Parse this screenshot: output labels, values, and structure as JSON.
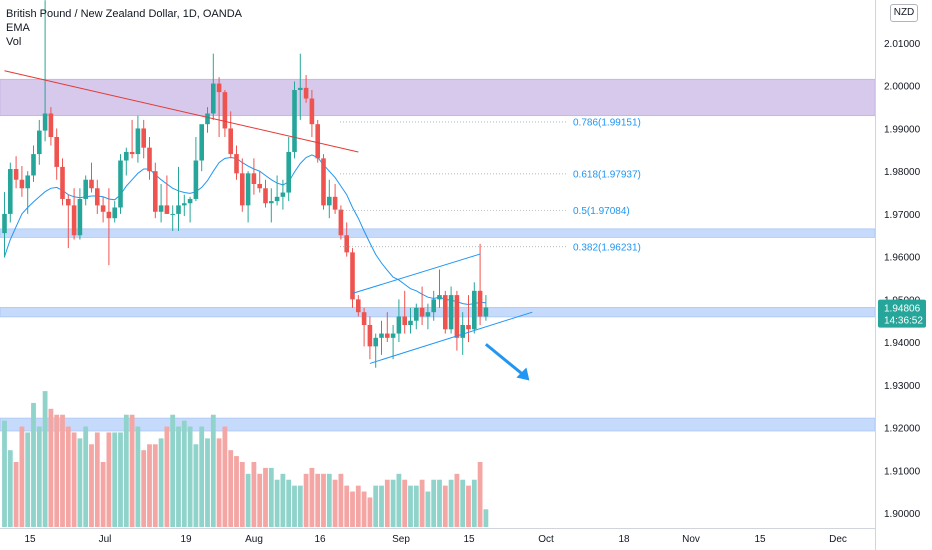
{
  "header": {
    "symbol": "British Pound / New Zealand Dollar, 1D, OANDA",
    "indicator_1": "EMA",
    "indicator_2": "Vol"
  },
  "currency_badge": "NZD",
  "price_label": {
    "price": "1.94806",
    "countdown": "14:36:52"
  },
  "colors": {
    "up": "#26a69a",
    "down": "#ef5350",
    "vol_up": "#8fd3cb",
    "vol_down": "#f4a6a4",
    "zone_purple": "#d6c9ec",
    "zone_blue": "#c6dafc",
    "ema": "#2196f3",
    "trendline": "#e53935",
    "channel": "#2196f3",
    "fib": "#2196f3",
    "price_tag": "#26a69a"
  },
  "chart_data": {
    "type": "candlestick",
    "y_axis": {
      "min": 1.9,
      "max": 2.01,
      "ticks": [
        "2.01000",
        "2.00000",
        "1.99000",
        "1.98000",
        "1.97000",
        "1.96000",
        "1.95000",
        "1.94000",
        "1.93000",
        "1.92000",
        "1.91000",
        "1.90000"
      ]
    },
    "x_axis": {
      "tick_labels": [
        "15",
        "Jul",
        "19",
        "Aug",
        "16",
        "Sep",
        "15",
        "Oct",
        "18",
        "Nov",
        "15",
        "Dec"
      ]
    },
    "candles": [
      [
        1.9655,
        1.9751,
        1.9598,
        1.97
      ],
      [
        1.97,
        1.982,
        1.968,
        1.9805
      ],
      [
        1.9805,
        1.9835,
        1.976,
        1.978
      ],
      [
        1.978,
        1.9812,
        1.974,
        1.976
      ],
      [
        1.976,
        1.98,
        1.97,
        1.979
      ],
      [
        1.979,
        1.986,
        1.9775,
        1.984
      ],
      [
        1.984,
        1.992,
        1.9815,
        1.9895
      ],
      [
        1.9895,
        2.02,
        1.987,
        1.9935
      ],
      [
        1.9935,
        1.995,
        1.986,
        1.988
      ],
      [
        1.988,
        1.99,
        1.978,
        1.981
      ],
      [
        1.981,
        1.983,
        1.972,
        1.9735
      ],
      [
        1.9735,
        1.9745,
        1.962,
        1.972
      ],
      [
        1.972,
        1.976,
        1.964,
        1.965
      ],
      [
        1.965,
        1.976,
        1.964,
        1.9735
      ],
      [
        1.9735,
        1.979,
        1.972,
        1.978
      ],
      [
        1.978,
        1.982,
        1.975,
        1.976
      ],
      [
        1.976,
        1.978,
        1.97,
        1.972
      ],
      [
        1.972,
        1.974,
        1.968,
        1.9705
      ],
      [
        1.9705,
        1.976,
        1.958,
        1.969
      ],
      [
        1.969,
        1.973,
        1.968,
        1.9715
      ],
      [
        1.9715,
        1.984,
        1.97,
        1.9825
      ],
      [
        1.9825,
        1.9855,
        1.979,
        1.9845
      ],
      [
        1.9845,
        1.992,
        1.983,
        1.984
      ],
      [
        1.984,
        1.993,
        1.982,
        1.99
      ],
      [
        1.99,
        1.992,
        1.983,
        1.9855
      ],
      [
        1.9855,
        1.988,
        1.978,
        1.98
      ],
      [
        1.98,
        1.982,
        1.969,
        1.9705
      ],
      [
        1.9705,
        1.977,
        1.968,
        1.972
      ],
      [
        1.972,
        1.979,
        1.97,
        1.97
      ],
      [
        1.97,
        1.972,
        1.966,
        1.97
      ],
      [
        1.97,
        1.981,
        1.966,
        1.972
      ],
      [
        1.972,
        1.9745,
        1.9695,
        1.9725
      ],
      [
        1.9725,
        1.974,
        1.968,
        1.9735
      ],
      [
        1.9735,
        1.988,
        1.973,
        1.9825
      ],
      [
        1.9825,
        1.99,
        1.98,
        1.991
      ],
      [
        1.991,
        1.995,
        1.989,
        1.9935
      ],
      [
        1.9935,
        2.0075,
        1.992,
        2.0005
      ],
      [
        2.0005,
        2.002,
        1.988,
        1.9985
      ],
      [
        1.9985,
        1.999,
        1.988,
        1.99
      ],
      [
        1.99,
        1.994,
        1.983,
        1.984
      ],
      [
        1.984,
        1.986,
        1.978,
        1.9795
      ],
      [
        1.9795,
        1.983,
        1.9705,
        1.972
      ],
      [
        1.972,
        1.98,
        1.968,
        1.9795
      ],
      [
        1.9795,
        1.983,
        1.9745,
        1.977
      ],
      [
        1.977,
        1.98,
        1.975,
        1.976
      ],
      [
        1.976,
        1.978,
        1.9715,
        1.9725
      ],
      [
        1.9725,
        1.976,
        1.968,
        1.973
      ],
      [
        1.973,
        1.979,
        1.972,
        1.974
      ],
      [
        1.974,
        1.978,
        1.971,
        1.975
      ],
      [
        1.975,
        1.988,
        1.973,
        1.9845
      ],
      [
        1.9845,
        2.001,
        1.983,
        1.999
      ],
      [
        1.999,
        2.0075,
        1.992,
        1.9995
      ],
      [
        1.9995,
        2.0025,
        1.996,
        1.997
      ],
      [
        1.997,
        1.999,
        1.988,
        1.991
      ],
      [
        1.991,
        1.992,
        1.982,
        1.983
      ],
      [
        1.983,
        1.984,
        1.971,
        1.972
      ],
      [
        1.972,
        1.978,
        1.969,
        1.974
      ],
      [
        1.974,
        1.977,
        1.97,
        1.971
      ],
      [
        1.971,
        1.972,
        1.964,
        1.965
      ],
      [
        1.965,
        1.968,
        1.96,
        1.961
      ],
      [
        1.961,
        1.962,
        1.948,
        1.95
      ],
      [
        1.95,
        1.951,
        1.946,
        1.947
      ],
      [
        1.947,
        1.948,
        1.939,
        1.944
      ],
      [
        1.944,
        1.946,
        1.936,
        1.939
      ],
      [
        1.939,
        1.942,
        1.934,
        1.941
      ],
      [
        1.941,
        1.945,
        1.937,
        1.942
      ],
      [
        1.942,
        1.947,
        1.94,
        1.941
      ],
      [
        1.941,
        1.944,
        1.936,
        1.942
      ],
      [
        1.942,
        1.95,
        1.94,
        1.946
      ],
      [
        1.946,
        1.952,
        1.942,
        1.944
      ],
      [
        1.944,
        1.948,
        1.942,
        1.945
      ],
      [
        1.945,
        1.949,
        1.943,
        1.948
      ],
      [
        1.948,
        1.953,
        1.944,
        1.946
      ],
      [
        1.946,
        1.949,
        1.943,
        1.947
      ],
      [
        1.947,
        1.952,
        1.945,
        1.95
      ],
      [
        1.95,
        1.957,
        1.948,
        1.951
      ],
      [
        1.951,
        1.952,
        1.942,
        1.943
      ],
      [
        1.943,
        1.953,
        1.942,
        1.951
      ],
      [
        1.951,
        1.952,
        1.938,
        1.941
      ],
      [
        1.941,
        1.947,
        1.937,
        1.944
      ],
      [
        1.944,
        1.951,
        1.94,
        1.943
      ],
      [
        1.943,
        1.954,
        1.942,
        1.952
      ],
      [
        1.952,
        1.963,
        1.944,
        1.946
      ],
      [
        1.946,
        1.951,
        1.945,
        1.9481
      ]
    ],
    "ema": [
      1.96,
      1.964,
      1.967,
      1.97,
      1.9715,
      1.9728,
      1.974,
      1.9752,
      1.976,
      1.9762,
      1.9755,
      1.9745,
      1.974,
      1.9738,
      1.974,
      1.9742,
      1.9742,
      1.974,
      1.9735,
      1.9733,
      1.9745,
      1.9765,
      1.978,
      1.9795,
      1.9805,
      1.9805,
      1.9792,
      1.978,
      1.977,
      1.976,
      1.9754,
      1.975,
      1.9748,
      1.9752,
      1.9762,
      1.9778,
      1.98,
      1.982,
      1.983,
      1.9832,
      1.983,
      1.982,
      1.9812,
      1.9805,
      1.98,
      1.979,
      1.978,
      1.9772,
      1.9768,
      1.9775,
      1.9798,
      1.9818,
      1.9832,
      1.9838,
      1.9832,
      1.9815,
      1.98,
      1.9785,
      1.9765,
      1.9745,
      1.9715,
      1.969,
      1.966,
      1.9632,
      1.9605,
      1.9585,
      1.9568,
      1.9552,
      1.9545,
      1.9535,
      1.9525,
      1.952,
      1.9512,
      1.9505,
      1.9502,
      1.9505,
      1.95,
      1.9498,
      1.9495,
      1.949,
      1.9488,
      1.949,
      1.9493,
      1.9492
    ],
    "volume": [
      90,
      65,
      55,
      85,
      80,
      105,
      85,
      115,
      100,
      95,
      95,
      85,
      80,
      75,
      85,
      70,
      80,
      55,
      80,
      80,
      80,
      95,
      95,
      85,
      65,
      70,
      70,
      75,
      85,
      95,
      85,
      90,
      85,
      70,
      85,
      75,
      95,
      75,
      85,
      65,
      60,
      55,
      45,
      55,
      45,
      50,
      50,
      40,
      45,
      40,
      35,
      35,
      45,
      50,
      45,
      45,
      45,
      40,
      45,
      35,
      30,
      35,
      30,
      25,
      35,
      35,
      40,
      40,
      45,
      40,
      35,
      35,
      40,
      30,
      40,
      40,
      35,
      40,
      45,
      40,
      35,
      40,
      55,
      15
    ],
    "volume_max": 110,
    "zones": [
      {
        "label": "resistance-zone-purple",
        "from": 1.993,
        "to": 2.0015
      },
      {
        "label": "zone-1.966",
        "from": 1.9645,
        "to": 1.9665
      },
      {
        "label": "zone-1.948",
        "from": 1.9459,
        "to": 1.9481
      },
      {
        "label": "zone-1.921",
        "from": 1.9192,
        "to": 1.9222
      }
    ],
    "fib_levels": [
      {
        "label": "0.786(1.99151)",
        "value": 1.99151
      },
      {
        "label": "0.618(1.97937)",
        "value": 1.97937
      },
      {
        "label": "0.5(1.97084)",
        "value": 1.97084
      },
      {
        "label": "0.382(1.96231)",
        "value": 1.96231
      }
    ],
    "trendline": {
      "from": [
        0,
        2.0035
      ],
      "to": [
        61,
        1.9845
      ]
    },
    "channel": {
      "upper": {
        "from": [
          60,
          1.9514
        ],
        "to": [
          82,
          1.9606
        ]
      },
      "lower": {
        "from": [
          63,
          1.935
        ],
        "to": [
          91,
          1.947
        ]
      }
    },
    "projection": {
      "from": [
        83,
        1.9395
      ],
      "to": [
        90.5,
        1.931
      ]
    },
    "last_price": 1.94806
  }
}
